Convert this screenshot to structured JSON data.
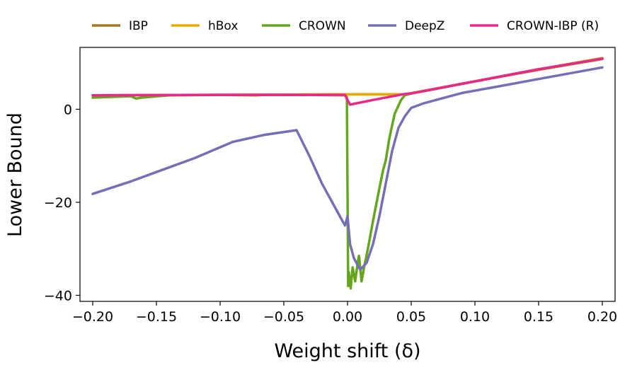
{
  "chart_data": {
    "type": "line",
    "title": "",
    "xlabel": "Weight shift (δ)",
    "ylabel": "Lower Bound",
    "xlim": [
      -0.21,
      0.21
    ],
    "ylim": [
      -41.3,
      13.3
    ],
    "grid": false,
    "legend_position": "top",
    "x_ticks": [
      -0.2,
      -0.15,
      -0.1,
      -0.05,
      0.0,
      0.05,
      0.1,
      0.15,
      0.2
    ],
    "x_tick_labels": [
      "−0.20",
      "−0.15",
      "−0.10",
      "−0.05",
      "0.00",
      "0.05",
      "0.10",
      "0.15",
      "0.20"
    ],
    "y_ticks": [
      0,
      -20,
      -40
    ],
    "y_tick_labels": [
      "0",
      "−20",
      "−40"
    ],
    "series": [
      {
        "name": "IBP",
        "color": "#a6761d",
        "x": [
          -0.2,
          -0.1,
          0.0,
          0.045,
          0.1,
          0.15,
          0.2
        ],
        "y": [
          3.0,
          3.1,
          3.2,
          3.2,
          6.0,
          8.5,
          10.8
        ]
      },
      {
        "name": "hBox",
        "color": "#e6ab02",
        "x": [
          -0.2,
          -0.1,
          0.0,
          0.045,
          0.1,
          0.15,
          0.2
        ],
        "y": [
          3.0,
          3.1,
          3.2,
          3.2,
          6.0,
          8.6,
          11.0
        ]
      },
      {
        "name": "CROWN",
        "color": "#66a61e",
        "x": [
          -0.2,
          -0.17,
          -0.166,
          -0.162,
          -0.14,
          -0.1,
          -0.072,
          -0.065,
          -0.03,
          -0.002,
          -0.0005,
          0.0005,
          0.001,
          0.0025,
          0.004,
          0.006,
          0.008,
          0.009,
          0.011,
          0.013,
          0.016,
          0.02,
          0.025,
          0.028,
          0.03,
          0.033,
          0.037,
          0.042,
          0.045,
          0.05,
          0.07,
          0.1,
          0.15,
          0.2
        ],
        "y": [
          2.5,
          2.8,
          2.3,
          2.5,
          3.0,
          3.1,
          3.0,
          3.1,
          3.1,
          3.0,
          2.6,
          -38.0,
          -35.0,
          -38.5,
          -34.0,
          -37.0,
          -33.0,
          -31.5,
          -37.0,
          -34.0,
          -30.0,
          -24.0,
          -17.0,
          -13.0,
          -11.0,
          -6.0,
          -1.0,
          2.0,
          3.0,
          3.4,
          4.4,
          6.0,
          8.6,
          10.9
        ]
      },
      {
        "name": "DeepZ",
        "color": "#7570b3",
        "x": [
          -0.2,
          -0.17,
          -0.15,
          -0.12,
          -0.09,
          -0.065,
          -0.04,
          -0.03,
          -0.02,
          -0.01,
          -0.005,
          -0.002,
          0.0,
          0.002,
          0.005,
          0.01,
          0.015,
          0.02,
          0.025,
          0.03,
          0.035,
          0.04,
          0.045,
          0.05,
          0.06,
          0.09,
          0.12,
          0.15,
          0.2
        ],
        "y": [
          -18.2,
          -15.5,
          -13.5,
          -10.5,
          -7.0,
          -5.5,
          -4.5,
          -10.0,
          -16.0,
          -21.0,
          -23.5,
          -25.0,
          -23.0,
          -29.0,
          -32.0,
          -34.5,
          -33.0,
          -29.0,
          -23.0,
          -16.0,
          -9.0,
          -4.0,
          -1.5,
          0.3,
          1.3,
          3.5,
          5.0,
          6.5,
          9.0
        ]
      },
      {
        "name": "CROWN-IBP (R)",
        "color": "#e7298a",
        "x": [
          -0.2,
          -0.1,
          -0.002,
          0.0,
          0.002,
          0.02,
          0.045,
          0.05,
          0.1,
          0.15,
          0.2
        ],
        "y": [
          3.0,
          3.1,
          3.1,
          2.0,
          1.0,
          2.0,
          3.3,
          3.4,
          6.0,
          8.6,
          10.9
        ]
      }
    ],
    "legend": [
      "IBP",
      "hBox",
      "CROWN",
      "DeepZ",
      "CROWN-IBP (R)"
    ]
  }
}
